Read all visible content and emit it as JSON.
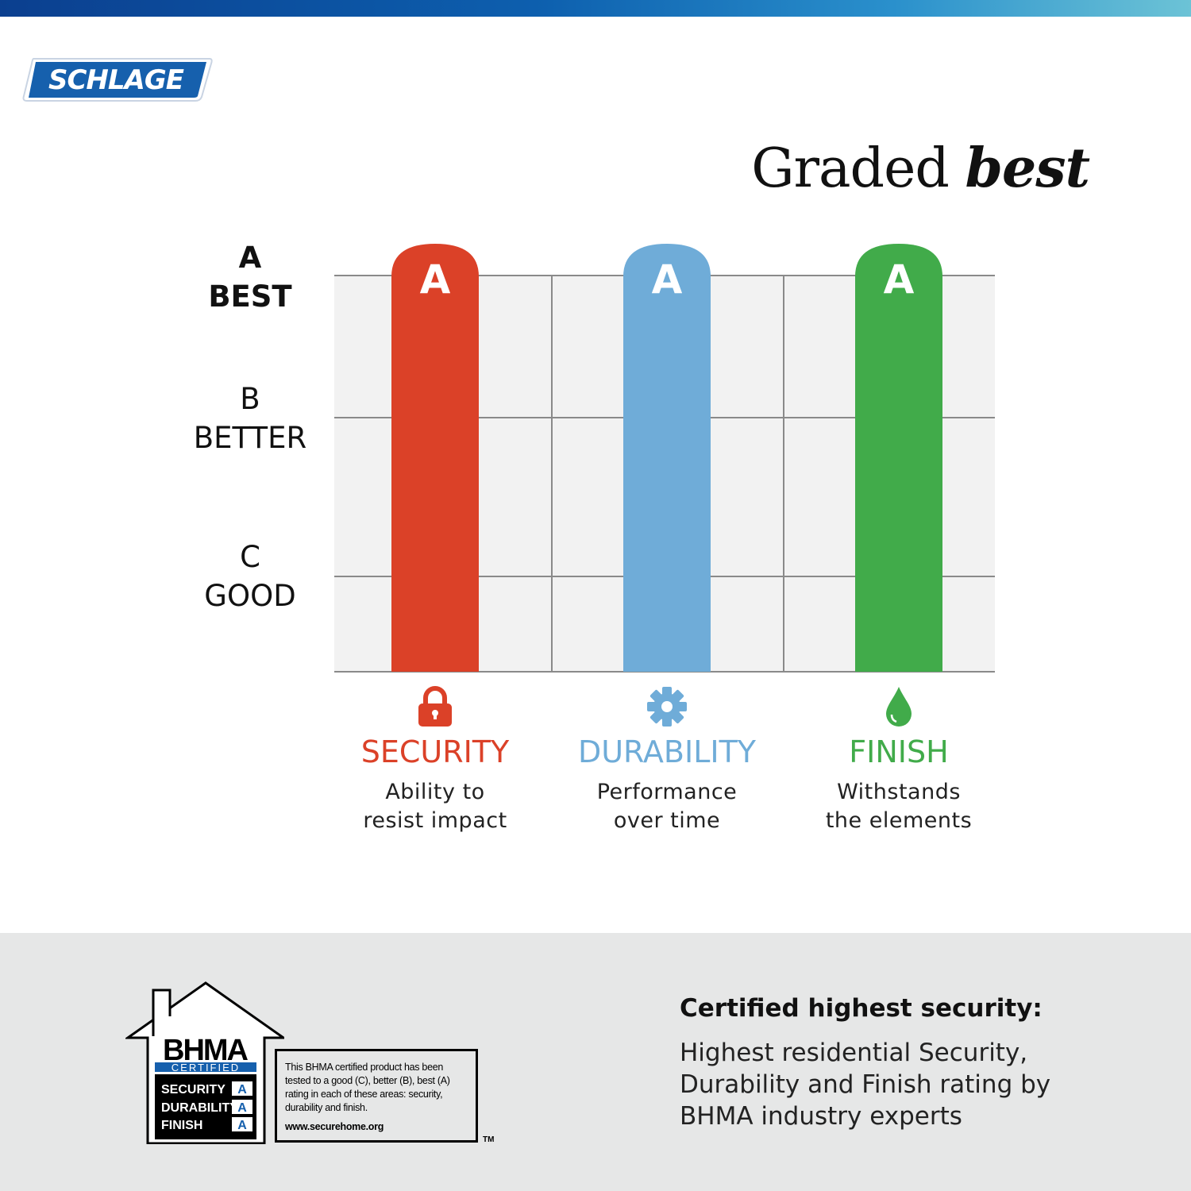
{
  "brand": {
    "logo_text": "SCHLAGE",
    "top_bar_colors": [
      "#0b3f8f",
      "#6cc3d6"
    ]
  },
  "header": {
    "title_regular": "Graded",
    "title_bold": "best"
  },
  "grade_levels": [
    {
      "letter": "A",
      "word": "BEST"
    },
    {
      "letter": "B",
      "word": "BETTER"
    },
    {
      "letter": "C",
      "word": "GOOD"
    }
  ],
  "chart_data": {
    "type": "bar",
    "categories": [
      "SECURITY",
      "DURABILITY",
      "FINISH"
    ],
    "values": [
      "A",
      "A",
      "A"
    ],
    "value_scale": [
      "C",
      "B",
      "A"
    ],
    "bar_labels": [
      "A",
      "A",
      "A"
    ],
    "colors": [
      "#db4128",
      "#6facd8",
      "#41ab4a"
    ],
    "grid": true,
    "xlabel": "",
    "ylabel": ""
  },
  "categories": [
    {
      "name": "SECURITY",
      "icon": "lock-icon",
      "desc_line1": "Ability to",
      "desc_line2": "resist impact",
      "color": "#db4128"
    },
    {
      "name": "DURABILITY",
      "icon": "gear-icon",
      "desc_line1": "Performance",
      "desc_line2": "over time",
      "color": "#6facd8"
    },
    {
      "name": "FINISH",
      "icon": "water-drop-icon",
      "desc_line1": "Withstands",
      "desc_line2": "the elements",
      "color": "#41ab4a"
    }
  ],
  "bhma_badge": {
    "brand": "BHMA",
    "certified": "CERTIFIED",
    "rows": [
      {
        "label": "SECURITY",
        "grade": "A"
      },
      {
        "label": "DURABILITY",
        "grade": "A"
      },
      {
        "label": "FINISH",
        "grade": "A"
      }
    ],
    "notice": "This BHMA certified product has been tested to a good (C), better (B), best (A) rating in each of these areas: security, durability and finish.",
    "url": "www.securehome.org",
    "tm": "TM"
  },
  "certification": {
    "title": "Certified highest security:",
    "description": "Highest residential Security, Durability and Finish rating by BHMA industry experts"
  }
}
